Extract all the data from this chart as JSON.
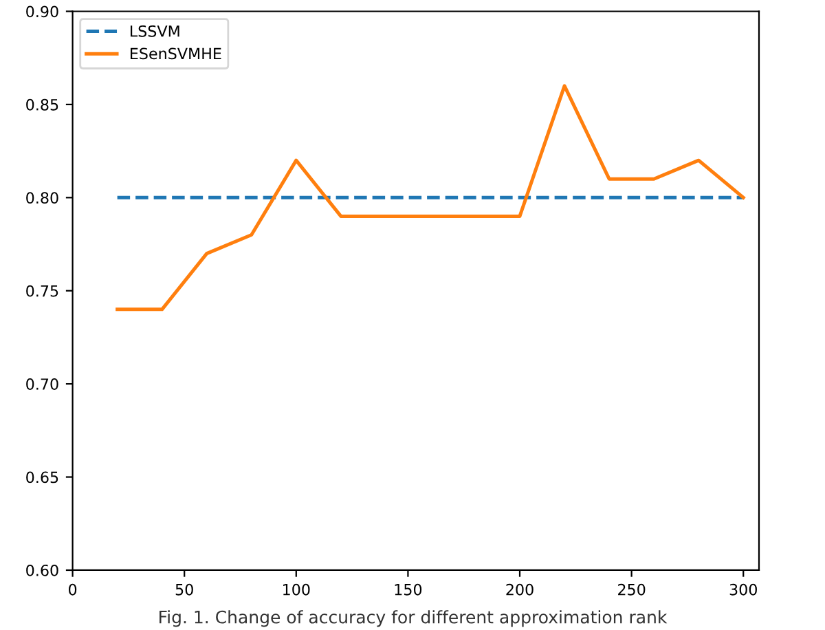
{
  "chart_data": {
    "type": "line",
    "series": [
      {
        "name": "LSSVM",
        "color": "#1f77b4",
        "line_style": "dashed",
        "x": [
          20,
          300
        ],
        "values": [
          0.8,
          0.8
        ]
      },
      {
        "name": "ESenSVMHE",
        "color": "#ff7f0e",
        "line_style": "solid",
        "x": [
          20,
          40,
          60,
          80,
          100,
          120,
          140,
          160,
          180,
          200,
          220,
          240,
          260,
          280,
          300
        ],
        "values": [
          0.74,
          0.74,
          0.77,
          0.78,
          0.82,
          0.79,
          0.79,
          0.79,
          0.79,
          0.79,
          0.86,
          0.81,
          0.81,
          0.82,
          0.8
        ]
      }
    ],
    "xlim": [
      0,
      307
    ],
    "xticks": [
      0,
      50,
      100,
      150,
      200,
      250,
      300
    ],
    "ylim": [
      0.6,
      0.9
    ],
    "yticks": [
      {
        "value": 0.6,
        "label": "0.60"
      },
      {
        "value": 0.65,
        "label": "0.65"
      },
      {
        "value": 0.7,
        "label": "0.70"
      },
      {
        "value": 0.75,
        "label": "0.75"
      },
      {
        "value": 0.8,
        "label": "0.80"
      },
      {
        "value": 0.85,
        "label": "0.85"
      },
      {
        "value": 0.9,
        "label": "0.90"
      }
    ],
    "grid": false,
    "legend": "top left",
    "annotations": [
      "Fig. 1. Change of accuracy for different approximation rank"
    ]
  }
}
